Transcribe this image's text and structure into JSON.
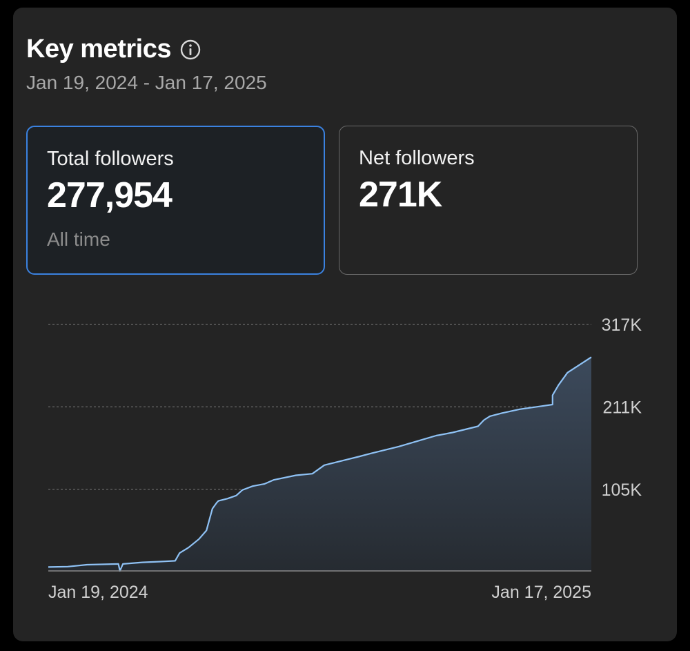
{
  "header": {
    "title": "Key metrics",
    "date_range": "Jan 19, 2024 - Jan 17, 2025"
  },
  "metrics": {
    "total": {
      "label": "Total followers",
      "value": "277,954",
      "sub": "All time"
    },
    "net": {
      "label": "Net followers",
      "value": "271K"
    }
  },
  "chart_data": {
    "type": "area",
    "title": "",
    "xlabel": "",
    "ylabel": "",
    "ylim": [
      0,
      317000
    ],
    "y_ticks": [
      {
        "value": 317000,
        "label": "317K"
      },
      {
        "value": 211000,
        "label": "211K"
      },
      {
        "value": 105000,
        "label": "105K"
      }
    ],
    "x_tick_labels": {
      "start": "Jan 19, 2024",
      "end": "Jan 17, 2025"
    },
    "x_range": [
      0,
      364
    ],
    "series": [
      {
        "name": "Followers",
        "x": [
          0,
          13,
          26,
          38,
          47,
          48,
          50,
          63,
          75,
          85,
          88,
          94,
          101,
          106,
          110,
          113,
          114,
          120,
          126,
          130,
          137,
          145,
          151,
          166,
          177,
          185,
          208,
          216,
          235,
          260,
          271,
          288,
          292,
          296,
          304,
          316,
          331,
          338,
          338,
          342,
          348,
          364
        ],
        "y": [
          5000,
          5500,
          8000,
          8500,
          9000,
          0,
          9000,
          11000,
          12000,
          13000,
          23000,
          30000,
          41000,
          52000,
          80000,
          88000,
          90000,
          93000,
          97000,
          104000,
          109000,
          112000,
          117000,
          123000,
          125000,
          136000,
          147000,
          151000,
          160000,
          174000,
          178000,
          186000,
          194000,
          199000,
          203000,
          208000,
          212000,
          214000,
          226000,
          239000,
          255000,
          275000
        ]
      }
    ],
    "colors": {
      "line": "#8fc2f5",
      "area_top": "#3c4a5c",
      "area_bottom": "#262b31",
      "grid": "#6a6a6a",
      "baseline": "#8a8a8a"
    }
  }
}
